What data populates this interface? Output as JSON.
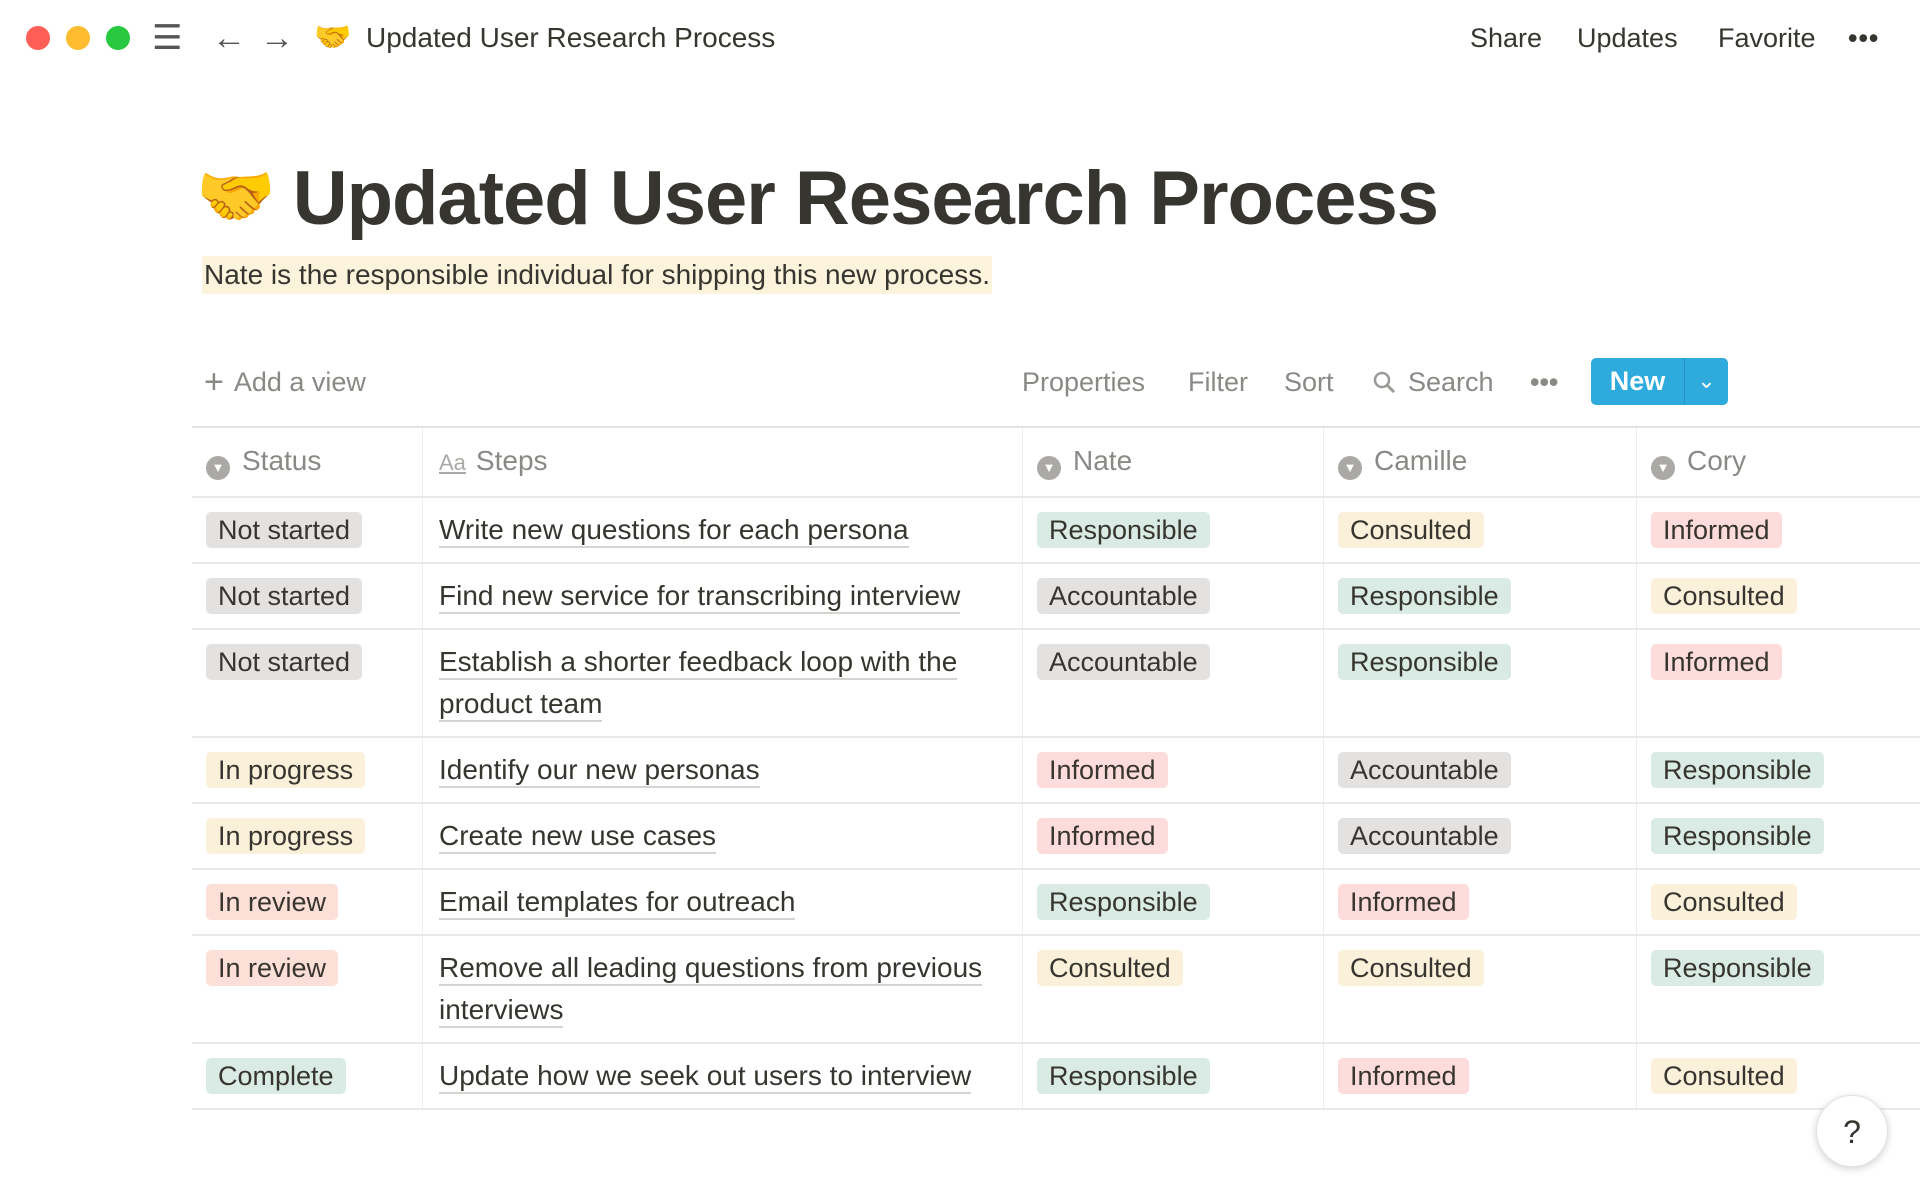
{
  "window": {
    "title": "Updated User Research Process",
    "icon": "handshake-emoji",
    "emoji": "🤝"
  },
  "topbar": {
    "actions": [
      "Share",
      "Updates",
      "Favorite"
    ],
    "more": "•••"
  },
  "page": {
    "title": "Updated User Research Process",
    "emoji": "🤝",
    "description": "Nate is the responsible individual for shipping this new process."
  },
  "toolbar": {
    "add_view": "Add a view",
    "properties": "Properties",
    "filter": "Filter",
    "sort": "Sort",
    "search": "Search",
    "more": "•••",
    "new": "New"
  },
  "colors": {
    "accent": "#2eaadc",
    "gray": "#e3e2e0",
    "yellow": "#fbf0d9",
    "red": "#fddcdb",
    "orange": "#fcdfd6",
    "green": "#d9ebe4"
  },
  "table": {
    "columns": [
      "Status",
      "Steps",
      "Nate",
      "Camille",
      "Cory"
    ],
    "tag_colors": {
      "Not started": "gray",
      "In progress": "yellow",
      "In review": "orange",
      "Complete": "green",
      "Responsible": "green",
      "Accountable": "gray",
      "Consulted": "yellow",
      "Informed": "red"
    },
    "rows": [
      {
        "status": "Not started",
        "step": "Write new questions for each persona",
        "nate": "Responsible",
        "camille": "Consulted",
        "cory": "Informed"
      },
      {
        "status": "Not started",
        "step": "Find new service for transcribing interview",
        "nate": "Accountable",
        "camille": "Responsible",
        "cory": "Consulted"
      },
      {
        "status": "Not started",
        "step": "Establish a shorter feedback loop with the product team",
        "nate": "Accountable",
        "camille": "Responsible",
        "cory": "Informed"
      },
      {
        "status": "In progress",
        "step": "Identify our new personas",
        "nate": "Informed",
        "camille": "Accountable",
        "cory": "Responsible"
      },
      {
        "status": "In progress",
        "step": "Create new use cases",
        "nate": "Informed",
        "camille": "Accountable",
        "cory": "Responsible"
      },
      {
        "status": "In review",
        "step": "Email templates for outreach",
        "nate": "Responsible",
        "camille": "Informed",
        "cory": "Consulted"
      },
      {
        "status": "In review",
        "step": "Remove all leading questions from previous interviews",
        "nate": "Consulted",
        "camille": "Consulted",
        "cory": "Responsible"
      },
      {
        "status": "Complete",
        "step": "Update how we seek out users to interview",
        "nate": "Responsible",
        "camille": "Informed",
        "cory": "Consulted"
      }
    ]
  },
  "help": "?"
}
